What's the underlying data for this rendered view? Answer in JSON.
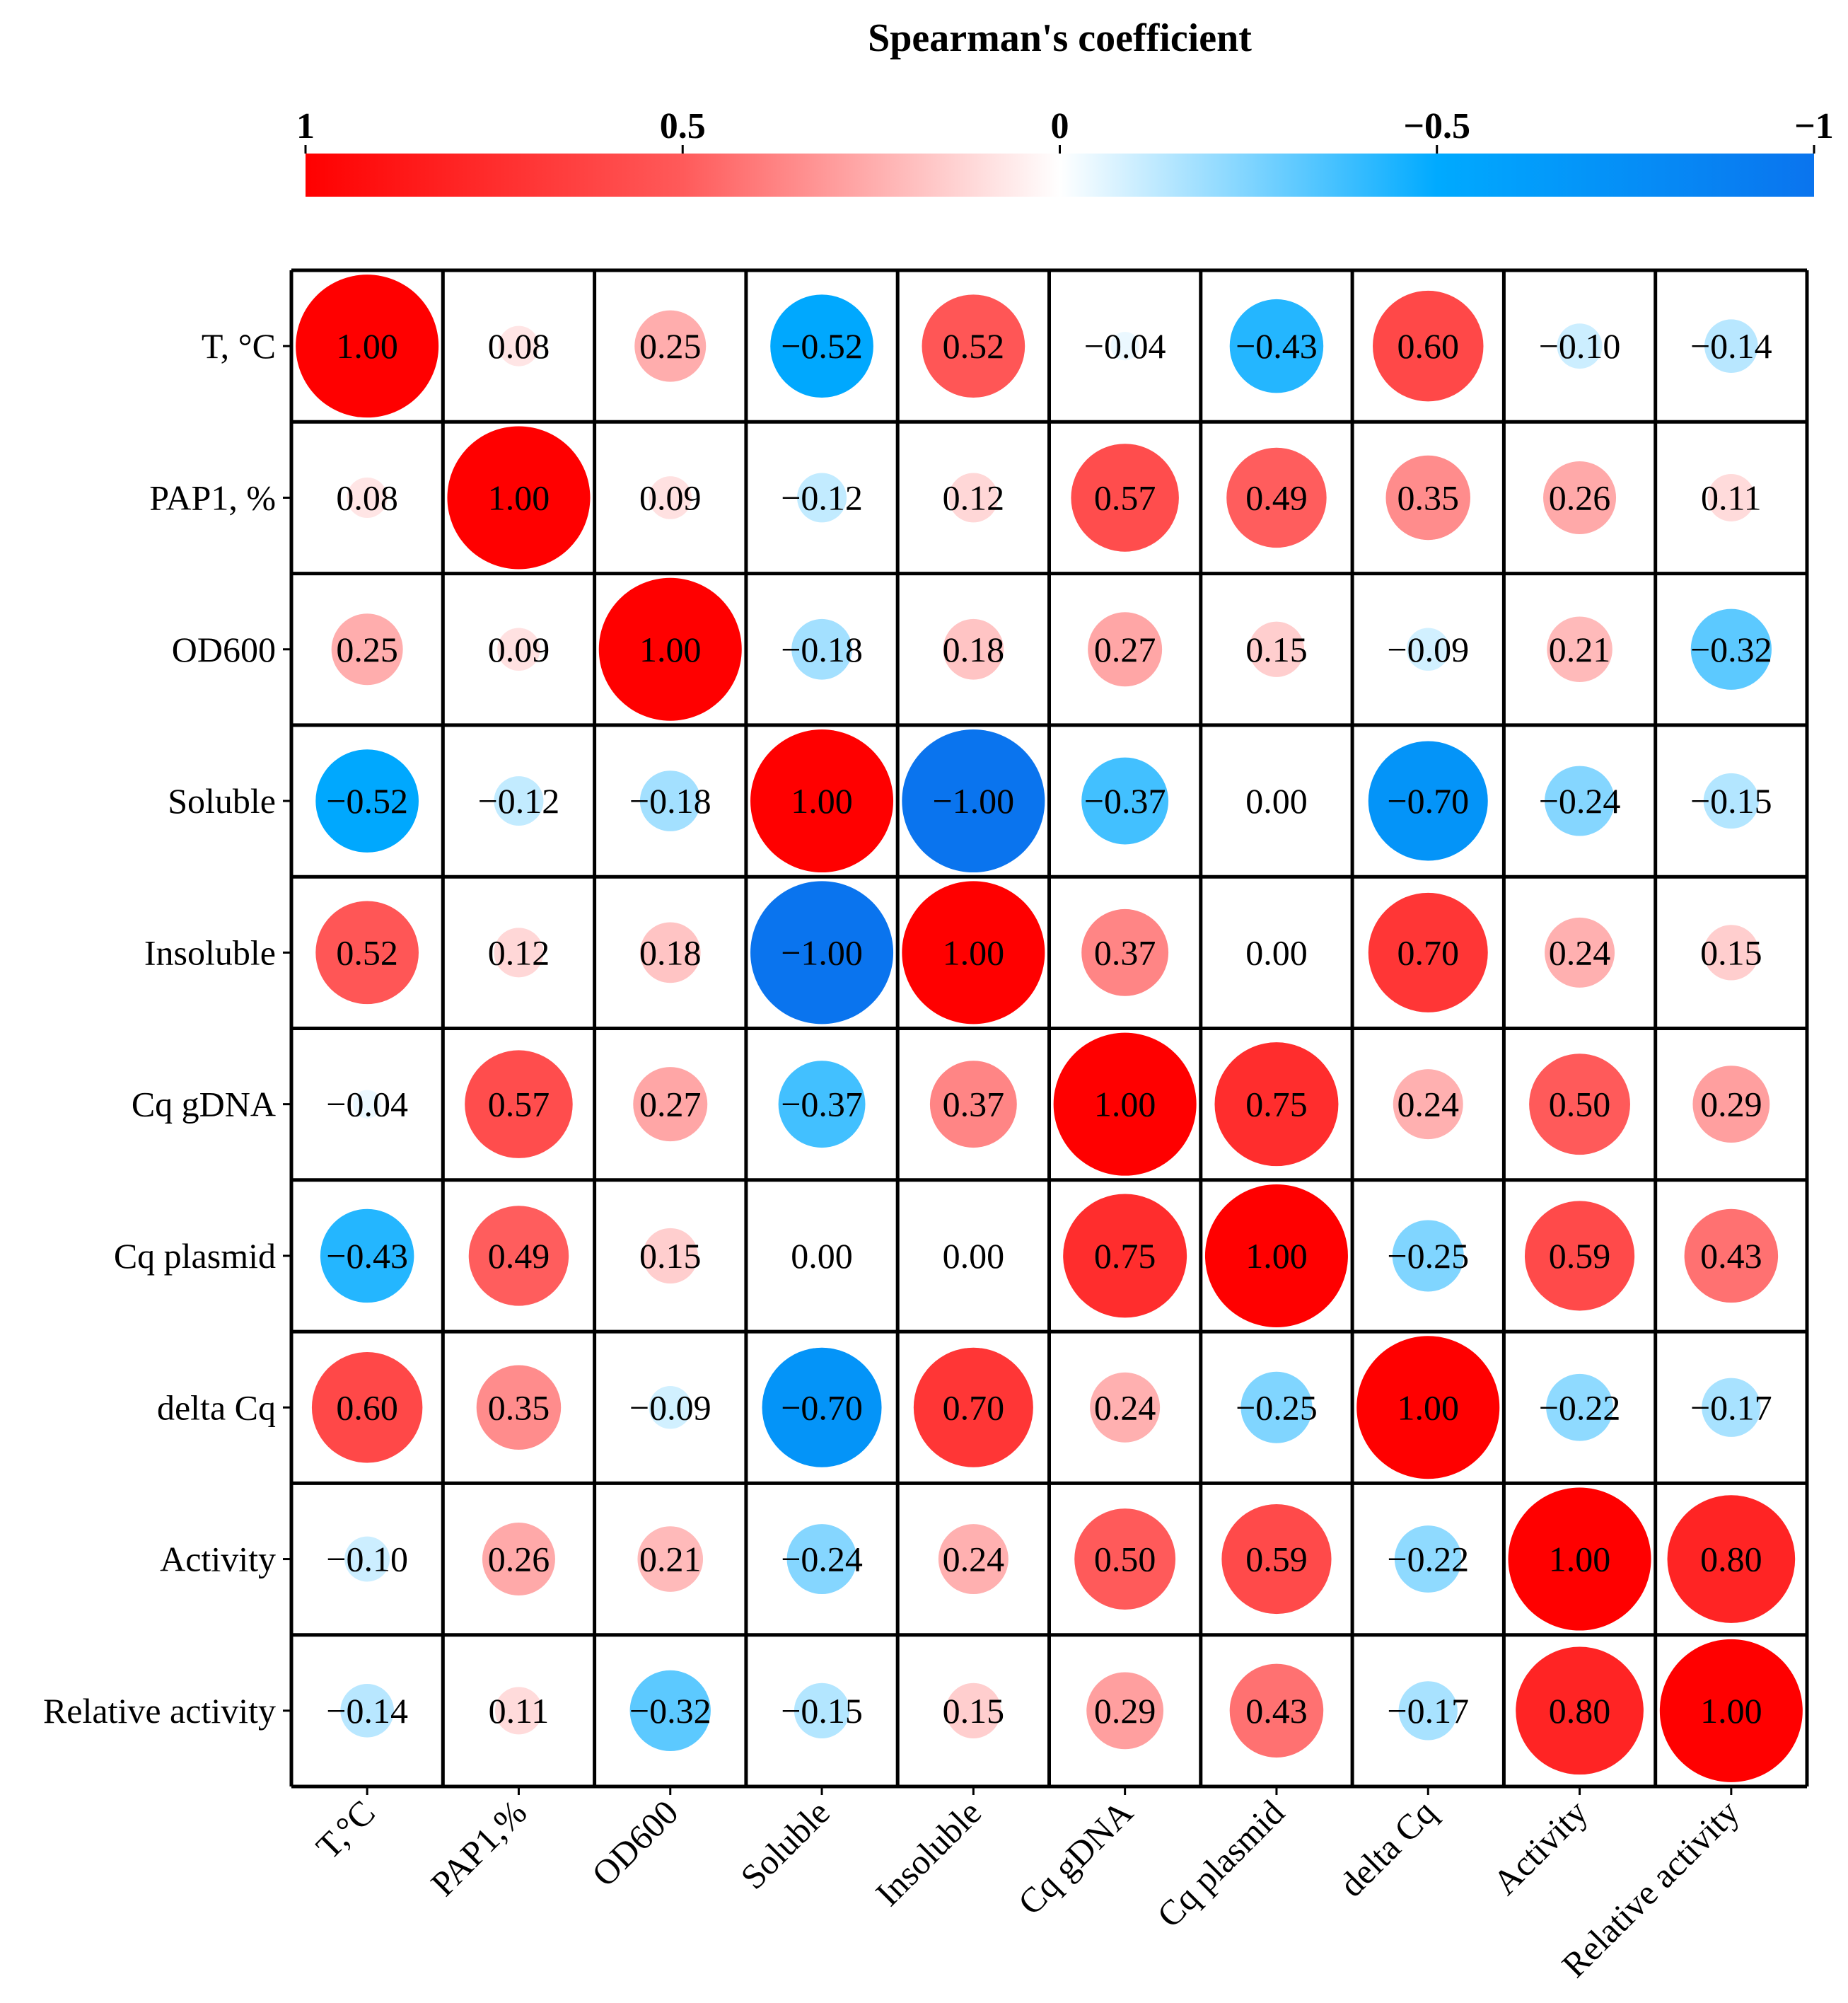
{
  "chart_data": {
    "type": "heatmap",
    "style": "circle-correlation-matrix",
    "colorbar": {
      "title": "Spearman's coefficient",
      "ticks": [
        {
          "value": 1,
          "label": "1"
        },
        {
          "value": 0.5,
          "label": "0.5"
        },
        {
          "value": 0,
          "label": "0"
        },
        {
          "value": -0.5,
          "label": "−0.5"
        },
        {
          "value": -1,
          "label": "−1"
        }
      ],
      "range": [
        1,
        -1
      ],
      "placement": "top",
      "colors": {
        "pos1": "#ff0000",
        "pos05": "#ff5a5a",
        "zero": "#ffffff",
        "neg05": "#00aaff",
        "neg1": "#0a74ee"
      }
    },
    "row_labels": [
      "T, °C",
      "PAP1, %",
      "OD600",
      "Soluble",
      "Insoluble",
      "Cq gDNA",
      "Cq plasmid",
      "delta Cq",
      "Activity",
      "Relative activity"
    ],
    "col_labels": [
      "T,°C",
      "PAP1,%",
      "OD600",
      "Soluble",
      "Insoluble",
      "Cq gDNA",
      "Cq plasmid",
      "delta Cq",
      "Activity",
      "Relative activity"
    ],
    "values": [
      [
        1.0,
        0.08,
        0.25,
        -0.52,
        0.52,
        -0.04,
        -0.43,
        0.6,
        -0.1,
        -0.14
      ],
      [
        0.08,
        1.0,
        0.09,
        -0.12,
        0.12,
        0.57,
        0.49,
        0.35,
        0.26,
        0.11
      ],
      [
        0.25,
        0.09,
        1.0,
        -0.18,
        0.18,
        0.27,
        0.15,
        -0.09,
        0.21,
        -0.32
      ],
      [
        -0.52,
        -0.12,
        -0.18,
        1.0,
        -1.0,
        -0.37,
        0.0,
        -0.7,
        -0.24,
        -0.15
      ],
      [
        0.52,
        0.12,
        0.18,
        -1.0,
        1.0,
        0.37,
        0.0,
        0.7,
        0.24,
        0.15
      ],
      [
        -0.04,
        0.57,
        0.27,
        -0.37,
        0.37,
        1.0,
        0.75,
        0.24,
        0.5,
        0.29
      ],
      [
        -0.43,
        0.49,
        0.15,
        0.0,
        0.0,
        0.75,
        1.0,
        -0.25,
        0.59,
        0.43
      ],
      [
        0.6,
        0.35,
        -0.09,
        -0.7,
        0.7,
        0.24,
        -0.25,
        1.0,
        -0.22,
        -0.17
      ],
      [
        -0.1,
        0.26,
        0.21,
        -0.24,
        0.24,
        0.5,
        0.59,
        -0.22,
        1.0,
        0.8
      ],
      [
        -0.14,
        0.11,
        -0.32,
        -0.15,
        0.15,
        0.29,
        0.43,
        -0.17,
        0.8,
        1.0
      ]
    ],
    "value_labels": [
      [
        "1.00",
        "0.08",
        "0.25",
        "−0.52",
        "0.52",
        "−0.04",
        "−0.43",
        "0.60",
        "−0.10",
        "−0.14"
      ],
      [
        "0.08",
        "1.00",
        "0.09",
        "−0.12",
        "0.12",
        "0.57",
        "0.49",
        "0.35",
        "0.26",
        "0.11"
      ],
      [
        "0.25",
        "0.09",
        "1.00",
        "−0.18",
        "0.18",
        "0.27",
        "0.15",
        "−0.09",
        "0.21",
        "−0.32"
      ],
      [
        "−0.52",
        "−0.12",
        "−0.18",
        "1.00",
        "−1.00",
        "−0.37",
        "0.00",
        "−0.70",
        "−0.24",
        "−0.15"
      ],
      [
        "0.52",
        "0.12",
        "0.18",
        "−1.00",
        "1.00",
        "0.37",
        "0.00",
        "0.70",
        "0.24",
        "0.15"
      ],
      [
        "−0.04",
        "0.57",
        "0.27",
        "−0.37",
        "0.37",
        "1.00",
        "0.75",
        "0.24",
        "0.50",
        "0.29"
      ],
      [
        "−0.43",
        "0.49",
        "0.15",
        "0.00",
        "0.00",
        "0.75",
        "1.00",
        "−0.25",
        "0.59",
        "0.43"
      ],
      [
        "0.60",
        "0.35",
        "−0.09",
        "−0.70",
        "0.70",
        "0.24",
        "−0.25",
        "1.00",
        "−0.22",
        "−0.17"
      ],
      [
        "−0.10",
        "0.26",
        "0.21",
        "−0.24",
        "0.24",
        "0.50",
        "0.59",
        "−0.22",
        "1.00",
        "0.80"
      ],
      [
        "−0.14",
        "0.11",
        "−0.32",
        "−0.15",
        "0.15",
        "0.29",
        "0.43",
        "−0.17",
        "0.80",
        "1.00"
      ]
    ],
    "grid": true
  }
}
